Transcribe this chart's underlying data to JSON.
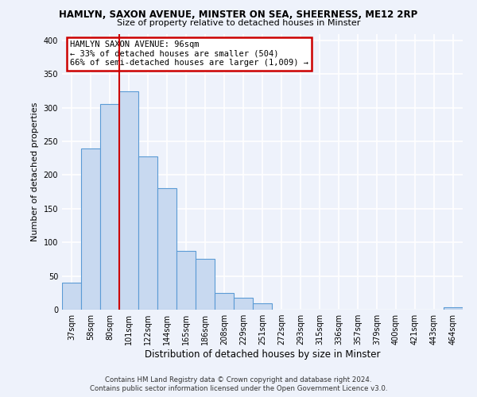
{
  "title": "HAMLYN, SAXON AVENUE, MINSTER ON SEA, SHEERNESS, ME12 2RP",
  "subtitle": "Size of property relative to detached houses in Minster",
  "xlabel": "Distribution of detached houses by size in Minster",
  "ylabel": "Number of detached properties",
  "bar_labels": [
    "37sqm",
    "58sqm",
    "80sqm",
    "101sqm",
    "122sqm",
    "144sqm",
    "165sqm",
    "186sqm",
    "208sqm",
    "229sqm",
    "251sqm",
    "272sqm",
    "293sqm",
    "315sqm",
    "336sqm",
    "357sqm",
    "379sqm",
    "400sqm",
    "421sqm",
    "443sqm",
    "464sqm"
  ],
  "bar_values": [
    40,
    240,
    305,
    325,
    228,
    180,
    87,
    75,
    25,
    18,
    10,
    0,
    0,
    0,
    0,
    0,
    0,
    0,
    0,
    0,
    3
  ],
  "bar_color": "#c8d9f0",
  "bar_edge_color": "#5b9bd5",
  "vline_position": 2.5,
  "annotation_line1": "HAMLYN SAXON AVENUE: 96sqm",
  "annotation_line2": "← 33% of detached houses are smaller (504)",
  "annotation_line3": "66% of semi-detached houses are larger (1,009) →",
  "annotation_box_color": "#ffffff",
  "annotation_box_edge_color": "#cc0000",
  "vline_color": "#cc0000",
  "ylim": [
    0,
    410
  ],
  "yticks": [
    0,
    50,
    100,
    150,
    200,
    250,
    300,
    350,
    400
  ],
  "background_color": "#eef2fb",
  "grid_color": "#ffffff",
  "footer_line1": "Contains HM Land Registry data © Crown copyright and database right 2024.",
  "footer_line2": "Contains public sector information licensed under the Open Government Licence v3.0."
}
